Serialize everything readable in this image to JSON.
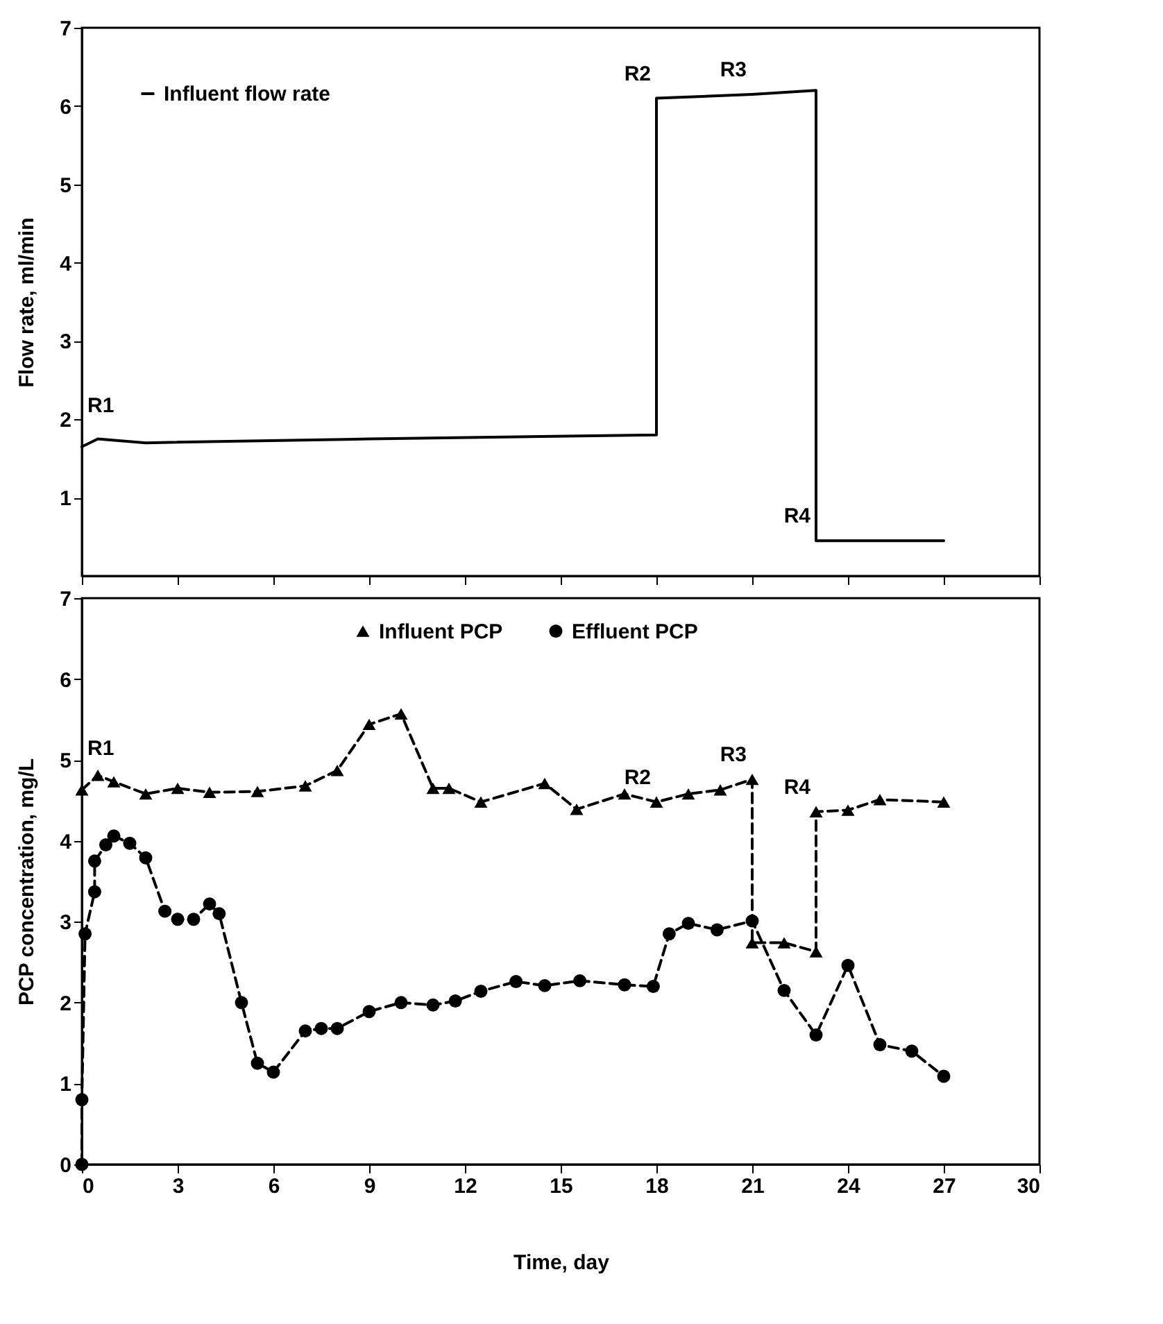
{
  "chart_data": [
    {
      "type": "line",
      "ylabel": "Flow rate, ml/min",
      "xlim": [
        0,
        30
      ],
      "xticks": [
        0,
        3,
        6,
        9,
        12,
        15,
        18,
        21,
        24,
        27,
        30
      ],
      "ylim": [
        0,
        7
      ],
      "yticks": [
        1,
        2,
        3,
        4,
        5,
        6,
        7
      ],
      "tick_labels": "y",
      "legend": "top left",
      "grid": false,
      "line_style": "solid",
      "marker": "none",
      "annotations": [
        {
          "text": "R1",
          "x": 0,
          "y": 1.65
        },
        {
          "text": "R2",
          "x": 18,
          "y": 6.1
        },
        {
          "text": "R3",
          "x": 21,
          "y": 6.15
        },
        {
          "text": "R4",
          "x": 23,
          "y": 0.45
        }
      ],
      "series": [
        {
          "name": "Influent flow rate",
          "color": "#000000",
          "x": [
            0,
            0.5,
            2,
            9,
            18,
            18,
            21,
            23,
            23,
            27
          ],
          "values": [
            1.65,
            1.75,
            1.7,
            1.75,
            1.8,
            6.1,
            6.15,
            6.2,
            0.45,
            0.45
          ]
        }
      ]
    },
    {
      "type": "line",
      "xlabel": "Time, day",
      "ylabel": "PCP concentration, mg/L",
      "xlim": [
        0,
        30
      ],
      "xticks": [
        0,
        3,
        6,
        9,
        12,
        15,
        18,
        21,
        24,
        27,
        30
      ],
      "ylim": [
        0,
        7
      ],
      "yticks": [
        0,
        1,
        2,
        3,
        4,
        5,
        6,
        7
      ],
      "legend": "top",
      "grid": false,
      "line_style": "dashed",
      "annotations": [
        {
          "text": "R1",
          "x": 0,
          "y": 4.63
        },
        {
          "text": "R2",
          "x": 18,
          "y": 4.48
        },
        {
          "text": "R3",
          "x": 21,
          "y": 4.76
        },
        {
          "text": "R4",
          "x": 23,
          "y": 4.36
        }
      ],
      "series": [
        {
          "name": "Influent PCP",
          "color": "#000000",
          "marker": "triangle",
          "x": [
            0,
            0.5,
            1,
            2,
            3,
            4,
            5.5,
            7,
            8,
            9,
            10,
            11,
            11.5,
            12.5,
            14.5,
            15.5,
            17,
            18,
            19,
            20,
            21,
            21,
            22,
            23,
            23,
            24,
            25,
            27
          ],
          "values": [
            4.63,
            4.81,
            4.73,
            4.58,
            4.65,
            4.6,
            4.61,
            4.68,
            4.87,
            5.44,
            5.57,
            4.65,
            4.65,
            4.48,
            4.71,
            4.39,
            4.58,
            4.48,
            4.58,
            4.63,
            4.76,
            2.74,
            2.74,
            2.63,
            4.36,
            4.38,
            4.51,
            4.48
          ]
        },
        {
          "name": "Effluent PCP",
          "color": "#000000",
          "marker": "circle",
          "x": [
            0,
            0,
            0.1,
            0.4,
            0.4,
            0.75,
            1,
            1.5,
            2,
            2.6,
            3,
            3.5,
            4,
            4.3,
            5,
            5.5,
            6,
            7,
            7.5,
            8,
            9,
            10,
            11,
            11.7,
            12.5,
            13.6,
            14.5,
            15.6,
            17,
            17.9,
            18.4,
            19,
            19.9,
            21,
            22,
            23,
            24,
            25,
            26,
            27
          ],
          "values": [
            0,
            0.8,
            2.85,
            3.37,
            3.75,
            3.95,
            4.06,
            3.97,
            3.79,
            3.13,
            3.03,
            3.03,
            3.22,
            3.1,
            2.0,
            1.25,
            1.14,
            1.65,
            1.68,
            1.68,
            1.89,
            2.0,
            1.97,
            2.02,
            2.14,
            2.26,
            2.21,
            2.27,
            2.22,
            2.2,
            2.85,
            2.98,
            2.9,
            3.01,
            2.15,
            1.6,
            2.46,
            1.48,
            1.4,
            1.09
          ]
        }
      ]
    }
  ]
}
